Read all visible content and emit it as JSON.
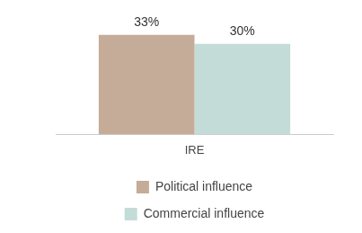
{
  "chart_data": {
    "type": "bar",
    "categories": [
      "IRE"
    ],
    "series": [
      {
        "name": "Political influence",
        "color": "#c4ac99",
        "values": [
          33
        ],
        "value_labels": [
          "33%"
        ]
      },
      {
        "name": "Commercial influence",
        "color": "#c4dcd8",
        "values": [
          30
        ],
        "value_labels": [
          "30%"
        ]
      }
    ],
    "data_labels": true,
    "legend": "bottom",
    "grid": false,
    "tick_labels": "x"
  }
}
